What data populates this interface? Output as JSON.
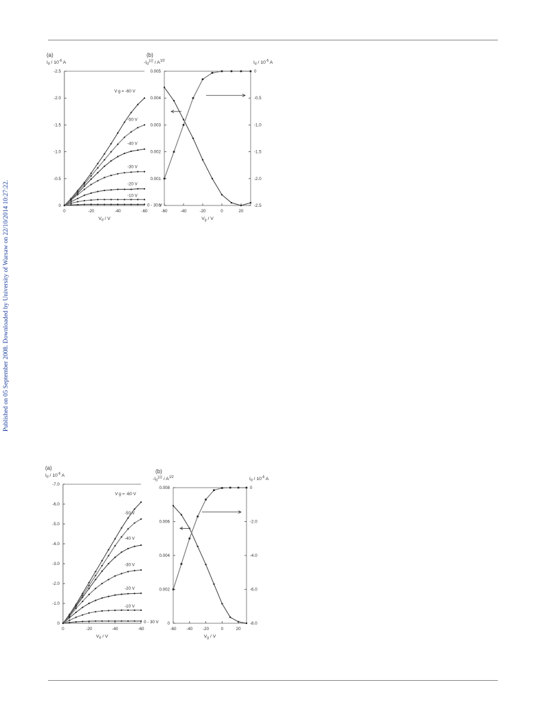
{
  "sidebar_text": "Published on 05 September 2008. Downloaded by University of Warsaw on 22/10/2014 10:27:22.",
  "figures": [
    {
      "panel_a": {
        "label": "(a)",
        "ylabel_html": "I<tspan font-size=\"5\" dy=\"1.5\">d</tspan><tspan dy=\"-1.5\"> / 10</tspan><tspan font-size=\"5\" dy=\"-3\">-6</tspan><tspan dy=\"3\"> A</tspan>",
        "xlabel_html": "V<tspan font-size=\"5\" dy=\"1.5\">d</tspan><tspan dy=\"-1.5\">  / V</tspan>",
        "yticks": [
          "-2.5",
          "-2.0",
          "-1.5",
          "-1.0",
          "-0.5",
          "0"
        ],
        "xticks": [
          "0",
          "-20",
          "-40",
          "-60"
        ],
        "curve_labels": [
          "V g = -60 V",
          "-50 V",
          "-40 V",
          "-30 V",
          "-20 V",
          "-10 V",
          "0 - 30 V"
        ]
      },
      "panel_b": {
        "label": "(b)",
        "ylabel_left_html": "-I<tspan font-size=\"5\" dy=\"1.5\">d</tspan><tspan font-size=\"5\" dy=\"-4\">1/2</tspan><tspan dy=\"2.5\"> / A</tspan><tspan font-size=\"5\" dy=\"-3\">1/2</tspan>",
        "ylabel_right_html": "I<tspan font-size=\"5\" dy=\"1.5\">d</tspan><tspan dy=\"-1.5\"> / 10</tspan><tspan font-size=\"5\" dy=\"-3\">-6</tspan><tspan dy=\"3\"> A</tspan>",
        "xlabel_html": "V<tspan font-size=\"5\" dy=\"1.5\">g</tspan><tspan dy=\"-1.5\"> / V</tspan>",
        "yticks_left": [
          "0.005",
          "0.004",
          "0.003",
          "0.002",
          "0.001",
          "0"
        ],
        "yticks_right": [
          "0",
          "-0.5",
          "-1.0",
          "-1.5",
          "-2.0",
          "-2.5"
        ],
        "xticks": [
          "-60",
          "-40",
          "-20",
          "0",
          "20"
        ]
      }
    },
    {
      "panel_a": {
        "label": "(a)",
        "ylabel_html": "I<tspan font-size=\"5\" dy=\"1.5\">d</tspan><tspan dy=\"-1.5\"> / 10</tspan><tspan font-size=\"5\" dy=\"-3\">-6</tspan><tspan dy=\"3\"> A</tspan>",
        "xlabel_html": "V<tspan font-size=\"5\" dy=\"1.5\">d</tspan><tspan dy=\"-1.5\">  / V</tspan>",
        "yticks": [
          "-7.0",
          "-6.0",
          "-5.0",
          "-4.0",
          "-3.0",
          "-2.0",
          "-1.0",
          "0"
        ],
        "xticks": [
          "0",
          "-20",
          "-40",
          "-60"
        ],
        "curve_labels": [
          "V g = -60 V",
          "-50 V",
          "-40 V",
          "-30 V",
          "-20 V",
          "-10 V",
          "0 - 30 V"
        ]
      },
      "panel_b": {
        "label": "(b)",
        "ylabel_left_html": "-I<tspan font-size=\"5\" dy=\"1.5\">d</tspan><tspan font-size=\"5\" dy=\"-4\">1/2</tspan><tspan dy=\"2.5\"> / A</tspan><tspan font-size=\"5\" dy=\"-3\">1/2</tspan>",
        "ylabel_right_html": "I<tspan font-size=\"5\" dy=\"1.5\">d</tspan><tspan dy=\"-1.5\"> / 10</tspan><tspan font-size=\"5\" dy=\"-3\">-6</tspan><tspan dy=\"3\"> A</tspan>",
        "xlabel_html": "V<tspan font-size=\"5\" dy=\"1.5\">g</tspan><tspan dy=\"-1.5\"> / V</tspan>",
        "yticks_left": [
          "0.008",
          "0.006",
          "0.004",
          "0.002",
          "0"
        ],
        "yticks_right": [
          "0",
          "-2.0",
          "-4.0",
          "-6.0",
          "-8.0"
        ],
        "xticks": [
          "-60",
          "-40",
          "-20",
          "0",
          "20"
        ]
      }
    }
  ],
  "chart_data": [
    {
      "type": "line",
      "x": [
        0,
        -5,
        -10,
        -15,
        -20,
        -25,
        -30,
        -35,
        -40,
        -45,
        -50,
        -55,
        -60
      ],
      "series": [
        {
          "name": "V g = -60 V",
          "values": [
            0,
            -0.13,
            -0.28,
            -0.43,
            -0.6,
            -0.78,
            -0.96,
            -1.15,
            -1.35,
            -1.55,
            -1.73,
            -1.88,
            -2.0
          ]
        },
        {
          "name": "-50 V",
          "values": [
            0,
            -0.12,
            -0.26,
            -0.4,
            -0.55,
            -0.7,
            -0.85,
            -1.0,
            -1.14,
            -1.27,
            -1.37,
            -1.45,
            -1.5
          ]
        },
        {
          "name": "-40 V",
          "values": [
            0,
            -0.11,
            -0.23,
            -0.36,
            -0.49,
            -0.61,
            -0.73,
            -0.83,
            -0.91,
            -0.97,
            -1.01,
            -1.03,
            -1.05
          ]
        },
        {
          "name": "-30 V",
          "values": [
            0,
            -0.1,
            -0.2,
            -0.3,
            -0.39,
            -0.46,
            -0.52,
            -0.56,
            -0.59,
            -0.61,
            -0.62,
            -0.63,
            -0.63
          ]
        },
        {
          "name": "-20 V",
          "values": [
            0,
            -0.07,
            -0.13,
            -0.19,
            -0.23,
            -0.26,
            -0.28,
            -0.29,
            -0.3,
            -0.3,
            -0.3,
            -0.31,
            -0.31
          ]
        },
        {
          "name": "-10 V",
          "values": [
            0,
            -0.04,
            -0.07,
            -0.09,
            -0.1,
            -0.11,
            -0.11,
            -0.11,
            -0.11,
            -0.11,
            -0.11,
            -0.11,
            -0.11
          ]
        },
        {
          "name": "0 - 30 V",
          "values": [
            0,
            -0.01,
            -0.015,
            -0.02,
            -0.02,
            -0.02,
            -0.02,
            -0.02,
            -0.02,
            -0.02,
            -0.02,
            -0.02,
            -0.02
          ]
        }
      ],
      "ylim": [
        -2.5,
        0
      ],
      "xlim": [
        0,
        -60
      ]
    },
    {
      "type": "line",
      "x": [
        -60,
        -50,
        -40,
        -30,
        -20,
        -10,
        0,
        10,
        20,
        30
      ],
      "series": [
        {
          "values": [
            0.0044,
            0.0039,
            0.0032,
            0.0025,
            0.0017,
            0.001,
            0.0004,
            0.0001,
            0.0,
            0.0001
          ],
          "axis": "left"
        },
        {
          "values": [
            -2.0,
            -1.5,
            -1.0,
            -0.5,
            -0.15,
            -0.03,
            0,
            0,
            0,
            0
          ],
          "axis": "right"
        }
      ],
      "ylim_left": [
        0,
        0.005
      ],
      "ylim_right": [
        -2.5,
        0
      ],
      "xlim": [
        -60,
        30
      ]
    },
    {
      "type": "line",
      "x": [
        0,
        -5,
        -10,
        -15,
        -20,
        -25,
        -30,
        -35,
        -40,
        -45,
        -50,
        -55,
        -60
      ],
      "series": [
        {
          "name": "V g = -60 V",
          "values": [
            0,
            -0.45,
            -0.95,
            -1.5,
            -2.05,
            -2.6,
            -3.15,
            -3.7,
            -4.25,
            -4.8,
            -5.3,
            -5.75,
            -6.1
          ]
        },
        {
          "name": "-50 V",
          "values": [
            0,
            -0.43,
            -0.9,
            -1.4,
            -1.9,
            -2.4,
            -2.9,
            -3.4,
            -3.9,
            -4.35,
            -4.75,
            -5.05,
            -5.25
          ]
        },
        {
          "name": "-40 V",
          "values": [
            0,
            -0.4,
            -0.85,
            -1.3,
            -1.75,
            -2.2,
            -2.62,
            -3.0,
            -3.32,
            -3.58,
            -3.76,
            -3.87,
            -3.93
          ]
        },
        {
          "name": "-30 V",
          "values": [
            0,
            -0.35,
            -0.75,
            -1.1,
            -1.45,
            -1.75,
            -2.0,
            -2.2,
            -2.38,
            -2.5,
            -2.6,
            -2.65,
            -2.68
          ]
        },
        {
          "name": "-20 V",
          "values": [
            0,
            -0.28,
            -0.55,
            -0.8,
            -1.0,
            -1.15,
            -1.27,
            -1.35,
            -1.42,
            -1.46,
            -1.49,
            -1.5,
            -1.51
          ]
        },
        {
          "name": "-10 V",
          "values": [
            0,
            -0.15,
            -0.3,
            -0.42,
            -0.52,
            -0.58,
            -0.62,
            -0.64,
            -0.65,
            -0.66,
            -0.66,
            -0.66,
            -0.66
          ]
        },
        {
          "name": "0 - 30 V",
          "values": [
            0,
            -0.04,
            -0.07,
            -0.09,
            -0.1,
            -0.11,
            -0.11,
            -0.11,
            -0.11,
            -0.11,
            -0.11,
            -0.11,
            -0.11
          ]
        }
      ],
      "ylim": [
        -7.0,
        0
      ],
      "xlim": [
        0,
        -60
      ]
    },
    {
      "type": "line",
      "x": [
        -60,
        -50,
        -40,
        -30,
        -20,
        -10,
        0,
        10,
        20,
        30
      ],
      "series": [
        {
          "values": [
            0.0078,
            0.0072,
            0.0063,
            0.0051,
            0.0039,
            0.0026,
            0.0013,
            0.0004,
            0.0001,
            0.0
          ],
          "axis": "left"
        },
        {
          "values": [
            -6.0,
            -4.5,
            -3.0,
            -1.7,
            -0.7,
            -0.15,
            -0.02,
            0,
            0,
            0
          ],
          "axis": "right"
        }
      ],
      "ylim_left": [
        0,
        0.009
      ],
      "ylim_right": [
        -8.0,
        0
      ],
      "xlim": [
        -60,
        30
      ]
    }
  ]
}
